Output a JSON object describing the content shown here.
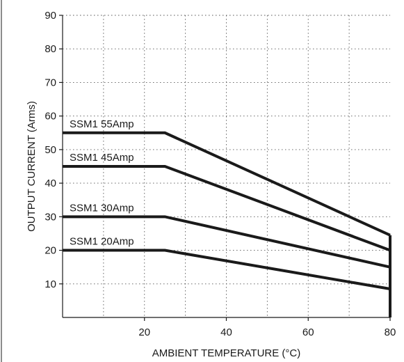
{
  "chart_data": {
    "type": "line",
    "xlabel": "AMBIENT TEMPERATURE (°C)",
    "ylabel": "OUTPUT CURRENT (Arms)",
    "xlim": [
      0,
      80
    ],
    "ylim": [
      0,
      90
    ],
    "xticks": [
      20,
      40,
      60,
      80
    ],
    "yticks": [
      10,
      20,
      30,
      40,
      50,
      60,
      70,
      80,
      90
    ],
    "grid": true,
    "series": [
      {
        "name": "SSM1 55Amp",
        "x": [
          0,
          25,
          80
        ],
        "y": [
          55,
          55,
          24.5
        ]
      },
      {
        "name": "SSM1 45Amp",
        "x": [
          0,
          25,
          80
        ],
        "y": [
          45,
          45,
          20
        ]
      },
      {
        "name": "SSM1 30Amp",
        "x": [
          0,
          25,
          80
        ],
        "y": [
          30,
          30,
          15
        ]
      },
      {
        "name": "SSM1 20Amp",
        "x": [
          0,
          25,
          80
        ],
        "y": [
          20,
          20,
          8.5
        ]
      }
    ],
    "colors": {
      "line": "#1a1a1a",
      "grid": "#555555",
      "background": "#ffffff"
    }
  }
}
